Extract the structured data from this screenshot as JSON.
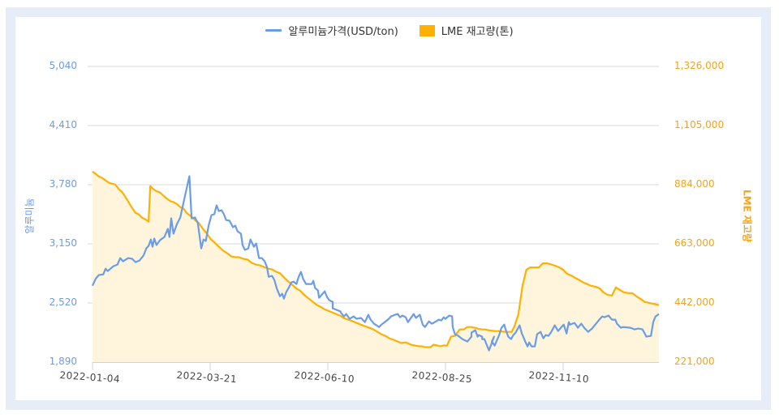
{
  "legend": {
    "series1_label": "알루미늄가격(USD/ton)",
    "series2_label": "LME 재고량(톤)"
  },
  "axes": {
    "left_title": "알루미늄",
    "right_title": "LME 재고량",
    "left_ticks": [
      "5,040",
      "4,410",
      "3,780",
      "3,150",
      "2,520",
      "1,890"
    ],
    "right_ticks": [
      "1,326,000",
      "1,105,000",
      "884,000",
      "663,000",
      "442,000",
      "221,000"
    ],
    "x_ticks": [
      "2022-01-04",
      "2022-03-21",
      "2022-06-10",
      "2022-08-25",
      "2022-11-10"
    ]
  },
  "colors": {
    "aluminum_line": "#6b9ce8",
    "lme_line": "#ffb000",
    "lme_fill": "#fff5dc",
    "grid": "#d9d9d9",
    "frame": "#e6edf7",
    "left_axis_text": "#6b9ce8",
    "right_axis_text": "#f3a31c"
  },
  "chart_data": {
    "type": "line",
    "title": "",
    "xlabel": "",
    "ylabel": "알루미늄",
    "ylabel_right": "LME 재고량",
    "ylim": [
      1890,
      5040
    ],
    "ylim_right": [
      221000,
      1326000
    ],
    "x_range": [
      "2022-01-04",
      "2022-12-30"
    ],
    "x_ticks": [
      "2022-01-04",
      "2022-03-21",
      "2022-06-10",
      "2022-08-25",
      "2022-11-10"
    ],
    "grid": true,
    "legend_position": "top",
    "series": [
      {
        "name": "알루미늄가격(USD/ton)",
        "axis": "left",
        "style": "line",
        "x_frac": [
          0,
          0.006,
          0.011,
          0.019,
          0.023,
          0.027,
          0.037,
          0.044,
          0.049,
          0.054,
          0.063,
          0.07,
          0.076,
          0.083,
          0.09,
          0.095,
          0.099,
          0.103,
          0.106,
          0.109,
          0.113,
          0.119,
          0.127,
          0.133,
          0.136,
          0.139,
          0.143,
          0.149,
          0.155,
          0.163,
          0.171,
          0.175,
          0.181,
          0.186,
          0.192,
          0.196,
          0.2,
          0.205,
          0.21,
          0.215,
          0.219,
          0.223,
          0.228,
          0.232,
          0.236,
          0.242,
          0.248,
          0.252,
          0.256,
          0.262,
          0.265,
          0.269,
          0.275,
          0.279,
          0.285,
          0.289,
          0.294,
          0.299,
          0.304,
          0.308,
          0.311,
          0.317,
          0.321,
          0.325,
          0.331,
          0.335,
          0.338,
          0.342,
          0.347,
          0.351,
          0.355,
          0.36,
          0.364,
          0.368,
          0.372,
          0.377,
          0.387,
          0.39,
          0.393,
          0.398,
          0.4,
          0.41,
          0.414,
          0.418,
          0.424,
          0.424,
          0.438,
          0.438,
          0.444,
          0.448,
          0.454,
          0.461,
          0.466,
          0.474,
          0.481,
          0.487,
          0.491,
          0.497,
          0.506,
          0.51,
          0.516,
          0.523,
          0.527,
          0.534,
          0.539,
          0.543,
          0.547,
          0.553,
          0.557,
          0.564,
          0.567,
          0.571,
          0.574,
          0.578,
          0.583,
          0.587,
          0.594,
          0.599,
          0.602,
          0.607,
          0.611,
          0.616,
          0.62,
          0.623,
          0.63,
          0.635,
          0.636,
          0.64,
          0.646,
          0.653,
          0.662,
          0.669,
          0.669,
          0.676,
          0.68,
          0.682,
          0.688,
          0.688,
          0.692,
          0.696,
          0.7,
          0.709,
          0.705,
          0.71,
          0.718,
          0.722,
          0.727,
          0.729,
          0.734,
          0.739,
          0.743,
          0.747,
          0.754,
          0.758,
          0.764,
          0.768,
          0.771,
          0.775,
          0.781,
          0.785,
          0.791,
          0.796,
          0.8,
          0.805,
          0.81,
          0.816,
          0.822,
          0.827,
          0.832,
          0.837,
          0.841,
          0.843,
          0.851,
          0.857,
          0.863,
          0.868,
          0.875,
          0.882,
          0.889,
          0.896,
          0.9,
          0.904,
          0.911,
          0.917,
          0.923,
          0.926,
          0.933,
          0.937,
          0.95,
          0.957,
          0.964,
          0.971,
          0.978,
          0.986,
          0.99,
          0.994,
          1.0
        ],
        "values": [
          2704,
          2782,
          2817,
          2825,
          2885,
          2860,
          2912,
          2929,
          2998,
          2964,
          2998,
          2990,
          2955,
          2972,
          3024,
          3102,
          3128,
          3197,
          3119,
          3206,
          3137,
          3189,
          3223,
          3310,
          3223,
          3422,
          3258,
          3361,
          3431,
          3655,
          3871,
          3422,
          3431,
          3370,
          3102,
          3197,
          3180,
          3344,
          3456,
          3465,
          3560,
          3499,
          3508,
          3465,
          3404,
          3396,
          3327,
          3344,
          3284,
          3258,
          3137,
          3085,
          3102,
          3197,
          3119,
          3154,
          2998,
          2998,
          2964,
          2903,
          2799,
          2808,
          2765,
          2679,
          2592,
          2618,
          2566,
          2636,
          2687,
          2739,
          2748,
          2722,
          2799,
          2851,
          2774,
          2722,
          2722,
          2756,
          2679,
          2653,
          2575,
          2644,
          2584,
          2549,
          2532,
          2463,
          2429,
          2420,
          2377,
          2403,
          2351,
          2377,
          2351,
          2360,
          2316,
          2394,
          2342,
          2299,
          2264,
          2290,
          2316,
          2351,
          2377,
          2394,
          2403,
          2368,
          2386,
          2368,
          2316,
          2377,
          2403,
          2360,
          2377,
          2394,
          2290,
          2264,
          2325,
          2299,
          2308,
          2325,
          2342,
          2334,
          2368,
          2351,
          2386,
          2377,
          2264,
          2187,
          2170,
          2135,
          2109,
          2161,
          2204,
          2230,
          2161,
          2178,
          2161,
          2135,
          2135,
          2075,
          2014,
          2161,
          2109,
          2066,
          2178,
          2256,
          2290,
          2247,
          2161,
          2135,
          2178,
          2204,
          2282,
          2195,
          2109,
          2057,
          2100,
          2057,
          2057,
          2187,
          2213,
          2144,
          2178,
          2170,
          2213,
          2282,
          2221,
          2256,
          2290,
          2195,
          2316,
          2290,
          2308,
          2256,
          2299,
          2256,
          2213,
          2247,
          2299,
          2351,
          2377,
          2368,
          2386,
          2342,
          2342,
          2299,
          2256,
          2264,
          2256,
          2239,
          2247,
          2239,
          2161,
          2170,
          2316,
          2377,
          2403,
          2498
        ]
      },
      {
        "name": "LME 재고량(톤)",
        "axis": "right",
        "style": "area",
        "x_frac": [
          0,
          0.006,
          0.011,
          0.017,
          0.023,
          0.029,
          0.034,
          0.04,
          0.046,
          0.052,
          0.057,
          0.063,
          0.069,
          0.076,
          0.082,
          0.087,
          0.093,
          0.099,
          0.102,
          0.106,
          0.112,
          0.119,
          0.125,
          0.13,
          0.138,
          0.143,
          0.149,
          0.155,
          0.161,
          0.166,
          0.173,
          0.181,
          0.188,
          0.195,
          0.202,
          0.209,
          0.216,
          0.223,
          0.231,
          0.238,
          0.245,
          0.252,
          0.259,
          0.266,
          0.274,
          0.281,
          0.288,
          0.295,
          0.302,
          0.309,
          0.317,
          0.324,
          0.331,
          0.338,
          0.345,
          0.352,
          0.36,
          0.367,
          0.374,
          0.381,
          0.388,
          0.395,
          0.403,
          0.41,
          0.417,
          0.424,
          0.431,
          0.438,
          0.444,
          0.453,
          0.46,
          0.467,
          0.474,
          0.481,
          0.489,
          0.496,
          0.503,
          0.51,
          0.517,
          0.524,
          0.532,
          0.539,
          0.546,
          0.553,
          0.559,
          0.562,
          0.569,
          0.576,
          0.582,
          0.587,
          0.59,
          0.597,
          0.602,
          0.609,
          0.614,
          0.619,
          0.626,
          0.633,
          0.64,
          0.648,
          0.655,
          0.662,
          0.669,
          0.676,
          0.68,
          0.688,
          0.693,
          0.699,
          0.711,
          0.718,
          0.728,
          0.734,
          0.74,
          0.745,
          0.752,
          0.759,
          0.766,
          0.773,
          0.78,
          0.788,
          0.795,
          0.802,
          0.809,
          0.817,
          0.824,
          0.831,
          0.838,
          0.845,
          0.852,
          0.86,
          0.867,
          0.874,
          0.877,
          0.881,
          0.888,
          0.895,
          0.902,
          0.909,
          0.917,
          0.924,
          0.931,
          0.938,
          0.946,
          0.953,
          0.96,
          0.967,
          0.975,
          1.0
        ],
        "values": [
          933000,
          924000,
          915000,
          909000,
          900000,
          891000,
          888000,
          885000,
          869000,
          857000,
          842000,
          821000,
          800000,
          779000,
          773000,
          761000,
          755000,
          746000,
          879000,
          870000,
          861000,
          855000,
          843000,
          834000,
          822000,
          819000,
          812000,
          800000,
          794000,
          779000,
          767000,
          752000,
          740000,
          719000,
          701000,
          680000,
          667000,
          652000,
          637000,
          628000,
          616000,
          613000,
          613000,
          607000,
          604000,
          592000,
          586000,
          583000,
          577000,
          571000,
          568000,
          559000,
          553000,
          538000,
          523000,
          511000,
          496000,
          487000,
          472000,
          460000,
          448000,
          436000,
          427000,
          418000,
          412000,
          406000,
          400000,
          394000,
          385000,
          379000,
          373000,
          367000,
          361000,
          355000,
          349000,
          343000,
          334000,
          325000,
          319000,
          310000,
          304000,
          298000,
          292000,
          295000,
          289000,
          286000,
          283000,
          280000,
          280000,
          277000,
          277000,
          277000,
          286000,
          283000,
          280000,
          283000,
          283000,
          316000,
          319000,
          343000,
          343000,
          352000,
          352000,
          349000,
          346000,
          343000,
          343000,
          340000,
          337000,
          337000,
          334000,
          334000,
          334000,
          355000,
          400000,
          505000,
          566000,
          575000,
          575000,
          575000,
          590000,
          590000,
          587000,
          581000,
          575000,
          566000,
          551000,
          545000,
          536000,
          527000,
          518000,
          512000,
          509000,
          506000,
          503000,
          497000,
          482000,
          473000,
          470000,
          500000,
          491000,
          482000,
          479000,
          479000,
          467000,
          458000,
          446000,
          434000,
          419000,
          413000,
          404000,
          398000
        ]
      }
    ]
  }
}
